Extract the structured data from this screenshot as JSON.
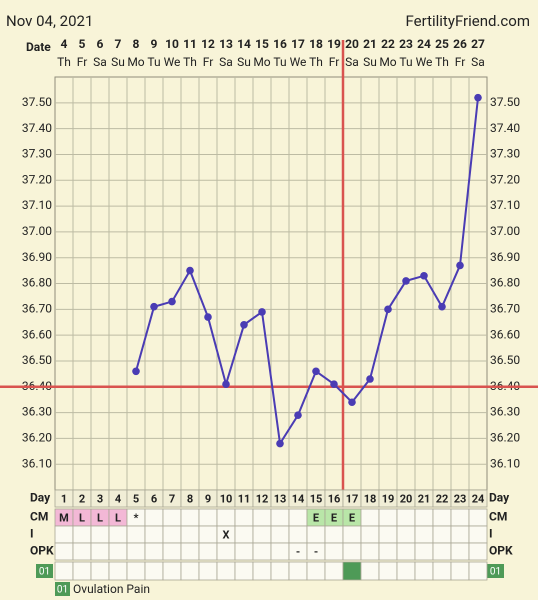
{
  "header": {
    "date": "Nov 04, 2021",
    "site": "FertilityFriend.com"
  },
  "chart_data": {
    "type": "line",
    "date_label": "Date",
    "categories": [
      "4",
      "5",
      "6",
      "7",
      "8",
      "9",
      "10",
      "11",
      "12",
      "13",
      "14",
      "15",
      "16",
      "17",
      "18",
      "19",
      "20",
      "21",
      "22",
      "23",
      "24",
      "25",
      "26",
      "27"
    ],
    "weekdays": [
      "Th",
      "Fr",
      "Sa",
      "Su",
      "Mo",
      "Tu",
      "We",
      "Th",
      "Fr",
      "Sa",
      "Su",
      "Mo",
      "Tu",
      "We",
      "Th",
      "Fr",
      "Sa",
      "Su",
      "Mo",
      "Tu",
      "We",
      "Th",
      "Fr",
      "Sa"
    ],
    "values": [
      null,
      null,
      null,
      null,
      36.46,
      36.71,
      36.73,
      36.85,
      36.67,
      36.41,
      36.64,
      36.69,
      36.18,
      36.29,
      36.46,
      36.41,
      36.34,
      36.43,
      36.7,
      36.81,
      36.83,
      36.71,
      36.87,
      37.52
    ],
    "color": "#4a3cb4",
    "ylim": [
      36.0,
      37.6
    ],
    "yticks": [
      {
        "value": 36.1,
        "label": "36.10"
      },
      {
        "value": 36.2,
        "label": "36.20"
      },
      {
        "value": 36.3,
        "label": "36.30"
      },
      {
        "value": 36.4,
        "label": "36.40"
      },
      {
        "value": 36.5,
        "label": "36.50"
      },
      {
        "value": 36.6,
        "label": "36.60"
      },
      {
        "value": 36.7,
        "label": "36.70"
      },
      {
        "value": 36.8,
        "label": "36.80"
      },
      {
        "value": 36.9,
        "label": "36.90"
      },
      {
        "value": 37.0,
        "label": "37.00"
      },
      {
        "value": 37.1,
        "label": "37.10"
      },
      {
        "value": 37.2,
        "label": "37.20"
      },
      {
        "value": 37.3,
        "label": "37.30"
      },
      {
        "value": 37.4,
        "label": "37.40"
      },
      {
        "value": 37.5,
        "label": "37.50"
      }
    ],
    "grid": true,
    "coverline": 36.4,
    "ovulation_cycle_day": 17,
    "marker_color": "#d9534f"
  },
  "rows": {
    "day_label": "Day",
    "cycle_days": [
      1,
      2,
      3,
      4,
      5,
      6,
      7,
      8,
      9,
      10,
      11,
      12,
      13,
      14,
      15,
      16,
      17,
      18,
      19,
      20,
      21,
      22,
      23,
      24
    ],
    "cm_label": "CM",
    "cm": [
      "M",
      "L",
      "L",
      "L",
      "*",
      null,
      null,
      null,
      null,
      null,
      null,
      null,
      null,
      null,
      "E",
      "E",
      "E",
      null,
      null,
      null,
      null,
      null,
      null,
      null
    ],
    "cm_colors": {
      "M": "#f3b8d6",
      "L": "#f3b8d6",
      "E": "#b9e6a8"
    },
    "i_label": "I",
    "i": [
      null,
      null,
      null,
      null,
      null,
      null,
      null,
      null,
      null,
      "X",
      null,
      null,
      null,
      null,
      null,
      null,
      null,
      null,
      null,
      null,
      null,
      null,
      null,
      null
    ],
    "opk_label": "OPK",
    "opk": [
      null,
      null,
      null,
      null,
      null,
      null,
      null,
      null,
      null,
      null,
      null,
      null,
      null,
      "-",
      "-",
      null,
      null,
      null,
      null,
      null,
      null,
      null,
      null,
      null
    ],
    "pain_label": "01",
    "pain": [
      false,
      false,
      false,
      false,
      false,
      false,
      false,
      false,
      false,
      false,
      false,
      false,
      false,
      false,
      false,
      false,
      true,
      false,
      false,
      false,
      false,
      false,
      false,
      false
    ],
    "pain_color": "#4e9a57"
  },
  "legend": {
    "code": "01",
    "text": "Ovulation Pain"
  }
}
